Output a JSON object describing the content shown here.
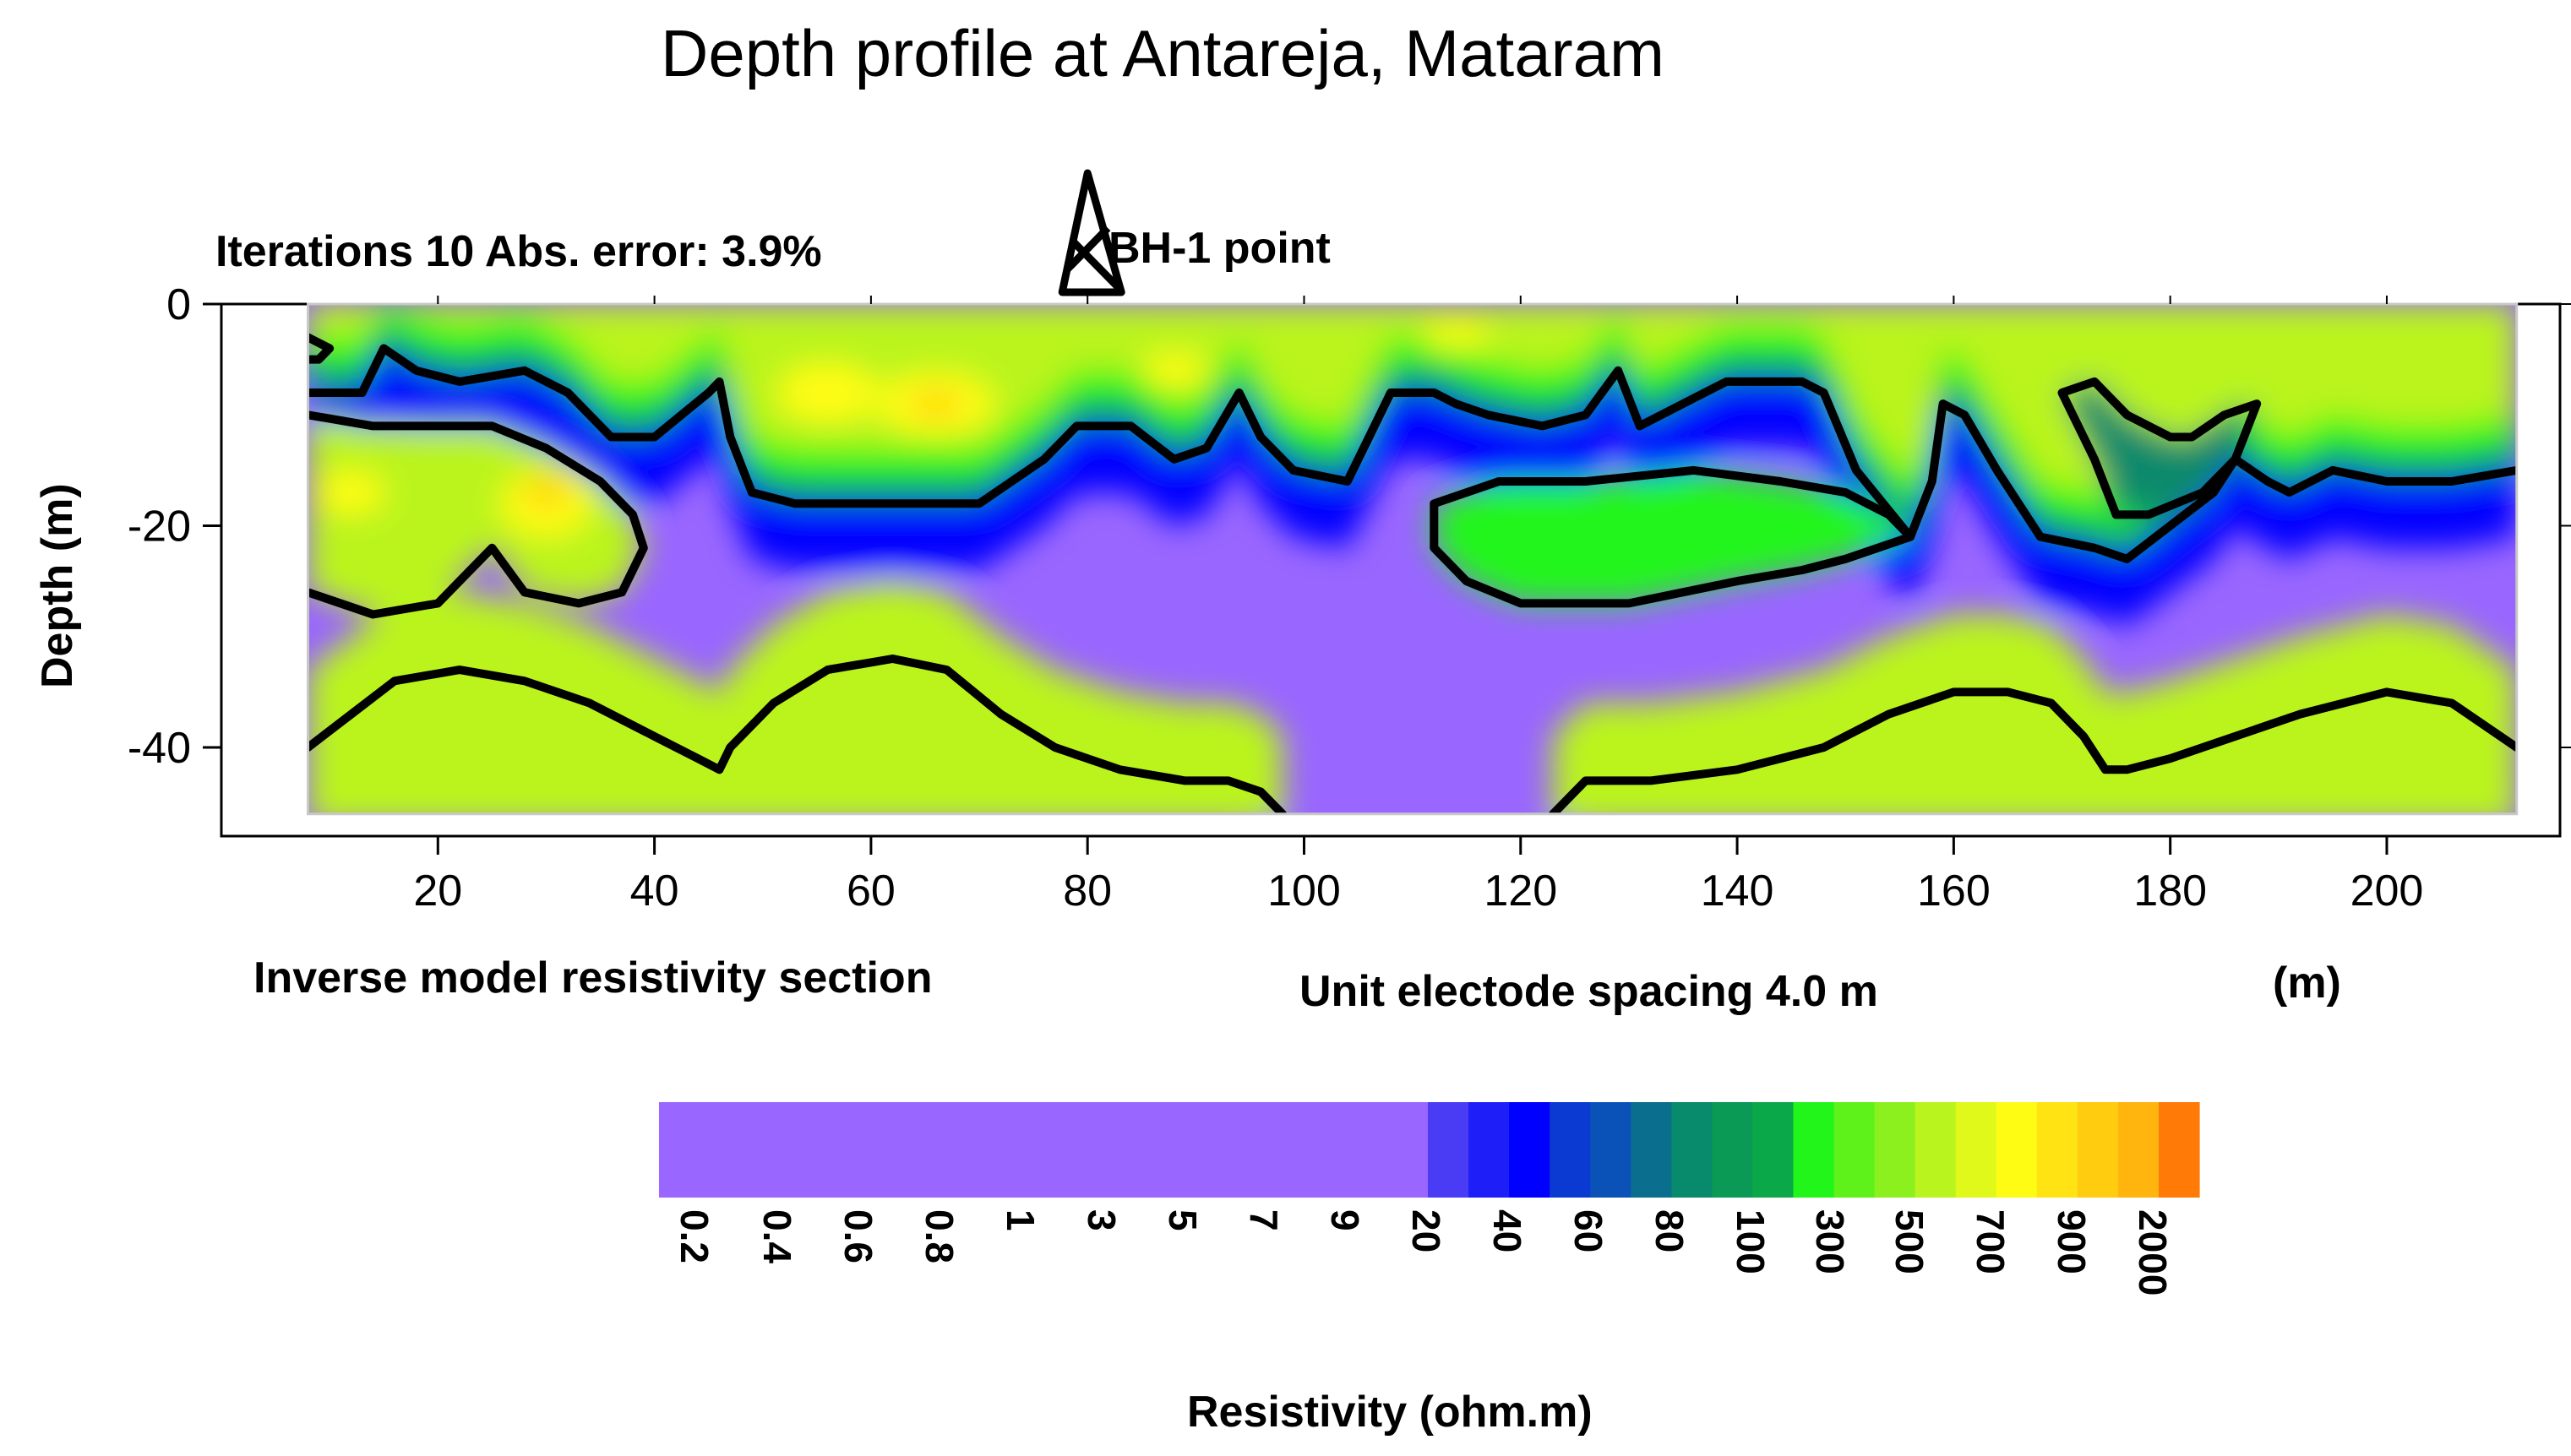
{
  "header": {
    "title": "Depth profile at Antareja, Mataram",
    "iterations": "Iterations 10 Abs. error: 3.9%",
    "borehole_label": "BH-1 point"
  },
  "footer": {
    "section_label": "Inverse model resistivity section",
    "spacing_label": "Unit electode spacing 4.0 m",
    "unit_label": "(m)"
  },
  "colorbar": {
    "title": "Resistivity (ohm.m)",
    "ticks": [
      "0.2",
      "0.4",
      "0.6",
      "0.8",
      "1",
      "3",
      "5",
      "7",
      "9",
      "20",
      "40",
      "60",
      "80",
      "100",
      "300",
      "500",
      "700",
      "900",
      "2000"
    ],
    "fine_colors": [
      "#4a3cf5",
      "#1e1ef8",
      "#0000ff",
      "#0a3ad2",
      "#0b52b8",
      "#0a6e8e",
      "#088a6c",
      "#0a9a55",
      "#0ba84a",
      "#22f51a",
      "#5ef21a",
      "#8cf01e",
      "#baf41e",
      "#e0f81a",
      "#fffc14",
      "#ffe312",
      "#ffcc10",
      "#ffb40e",
      "#ff7a06"
    ],
    "low_color": "#9966ff"
  },
  "chart_data": {
    "type": "heatmap",
    "title": "Depth profile at Antareja, Mataram",
    "xlabel": "(m)",
    "ylabel": "Depth (m)",
    "xlim": [
      8,
      212
    ],
    "ylim": [
      -46,
      0
    ],
    "plot_xlim": [
      0,
      216
    ],
    "plot_ylim": [
      -48,
      0
    ],
    "x_ticks": [
      20,
      40,
      60,
      80,
      100,
      120,
      140,
      160,
      180,
      200
    ],
    "y_ticks": [
      0,
      -20,
      -40
    ],
    "borehole_x": 80,
    "value_label": "Resistivity (ohm.m)",
    "contours": [
      {
        "name": "upper",
        "points": [
          [
            8,
            -8
          ],
          [
            13,
            -8
          ],
          [
            15,
            -4
          ],
          [
            18,
            -6
          ],
          [
            22,
            -7
          ],
          [
            28,
            -6
          ],
          [
            32,
            -8
          ],
          [
            36,
            -12
          ],
          [
            40,
            -12
          ],
          [
            45,
            -8
          ],
          [
            46,
            -7
          ],
          [
            47,
            -12
          ],
          [
            49,
            -17
          ],
          [
            53,
            -18
          ],
          [
            59,
            -18
          ],
          [
            64,
            -18
          ],
          [
            70,
            -18
          ],
          [
            76,
            -14
          ],
          [
            79,
            -11
          ],
          [
            84,
            -11
          ],
          [
            88,
            -14
          ],
          [
            91,
            -13
          ],
          [
            94,
            -8
          ],
          [
            96,
            -12
          ],
          [
            99,
            -15
          ],
          [
            104,
            -16
          ],
          [
            106,
            -12
          ],
          [
            108,
            -8
          ],
          [
            112,
            -8
          ],
          [
            114,
            -9
          ],
          [
            117,
            -10
          ],
          [
            122,
            -11
          ],
          [
            126,
            -10
          ],
          [
            129,
            -6
          ],
          [
            131,
            -11
          ],
          [
            135,
            -9
          ],
          [
            139,
            -7
          ],
          [
            146,
            -7
          ],
          [
            148,
            -8
          ],
          [
            151,
            -15
          ],
          [
            156,
            -21
          ],
          [
            158,
            -16
          ],
          [
            159,
            -9
          ],
          [
            161,
            -10
          ],
          [
            164,
            -15
          ],
          [
            168,
            -21
          ],
          [
            173,
            -22
          ],
          [
            176,
            -23
          ],
          [
            180,
            -20
          ],
          [
            184,
            -17
          ],
          [
            186,
            -14
          ],
          [
            189,
            -16
          ],
          [
            191,
            -17
          ],
          [
            195,
            -15
          ],
          [
            200,
            -16
          ],
          [
            206,
            -16
          ],
          [
            212,
            -15
          ]
        ]
      },
      {
        "name": "ring-right",
        "points": [
          [
            170,
            -8
          ],
          [
            173,
            -7
          ],
          [
            176,
            -10
          ],
          [
            180,
            -12
          ],
          [
            182,
            -12
          ],
          [
            185,
            -10
          ],
          [
            188,
            -9
          ],
          [
            186,
            -14
          ],
          [
            183,
            -17
          ],
          [
            178,
            -19
          ],
          [
            175,
            -19
          ],
          [
            173,
            -14
          ],
          [
            170,
            -8
          ]
        ]
      },
      {
        "name": "ring-mid",
        "points": [
          [
            112,
            -18
          ],
          [
            118,
            -16
          ],
          [
            126,
            -16
          ],
          [
            136,
            -15
          ],
          [
            144,
            -16
          ],
          [
            150,
            -17
          ],
          [
            154,
            -19
          ],
          [
            156,
            -21
          ],
          [
            150,
            -23
          ],
          [
            146,
            -24
          ],
          [
            140,
            -25
          ],
          [
            130,
            -27
          ],
          [
            120,
            -27
          ],
          [
            115,
            -25
          ],
          [
            112,
            -22
          ],
          [
            112,
            -18
          ]
        ]
      },
      {
        "name": "left-upper",
        "points": [
          [
            8,
            -10
          ],
          [
            14,
            -11
          ],
          [
            20,
            -11
          ],
          [
            25,
            -11
          ],
          [
            30,
            -13
          ],
          [
            35,
            -16
          ],
          [
            38,
            -19
          ],
          [
            39,
            -22
          ],
          [
            37,
            -26
          ],
          [
            33,
            -27
          ],
          [
            28,
            -26
          ],
          [
            25,
            -22
          ],
          [
            23,
            -24
          ],
          [
            20,
            -27
          ],
          [
            14,
            -28
          ],
          [
            8,
            -26
          ]
        ]
      },
      {
        "name": "left-tip",
        "points": [
          [
            8,
            -3
          ],
          [
            10,
            -4
          ],
          [
            9,
            -5
          ],
          [
            8,
            -5
          ]
        ]
      },
      {
        "name": "bottom-left",
        "points": [
          [
            8,
            -40
          ],
          [
            12,
            -37
          ],
          [
            16,
            -34
          ],
          [
            22,
            -33
          ],
          [
            28,
            -34
          ],
          [
            34,
            -36
          ],
          [
            40,
            -39
          ],
          [
            44,
            -41
          ],
          [
            46,
            -42
          ],
          [
            47,
            -40
          ],
          [
            51,
            -36
          ],
          [
            56,
            -33
          ],
          [
            62,
            -32
          ],
          [
            67,
            -33
          ],
          [
            72,
            -37
          ],
          [
            77,
            -40
          ],
          [
            83,
            -42
          ],
          [
            89,
            -43
          ],
          [
            93,
            -43
          ],
          [
            96,
            -44
          ],
          [
            98,
            -46
          ]
        ]
      },
      {
        "name": "bottom-right",
        "points": [
          [
            123,
            -46
          ],
          [
            126,
            -43
          ],
          [
            132,
            -43
          ],
          [
            140,
            -42
          ],
          [
            148,
            -40
          ],
          [
            154,
            -37
          ],
          [
            160,
            -35
          ],
          [
            165,
            -35
          ],
          [
            169,
            -36
          ],
          [
            172,
            -39
          ],
          [
            174,
            -42
          ],
          [
            176,
            -42
          ],
          [
            180,
            -41
          ],
          [
            186,
            -39
          ],
          [
            192,
            -37
          ],
          [
            200,
            -35
          ],
          [
            206,
            -36
          ],
          [
            212,
            -40
          ]
        ]
      }
    ],
    "regions": [
      {
        "level": "low",
        "x": [
          8,
          212
        ],
        "depth_range": [
          -46,
          0
        ],
        "resistivity_range": "0.2-20"
      },
      {
        "level": "high",
        "x": [
          8,
          212
        ],
        "depth_range": [
          -12,
          0
        ],
        "resistivity_range": "300-2000"
      },
      {
        "level": "high",
        "x": [
          8,
          212
        ],
        "depth_range": [
          -46,
          -40
        ],
        "resistivity_range": "300-900"
      }
    ]
  }
}
